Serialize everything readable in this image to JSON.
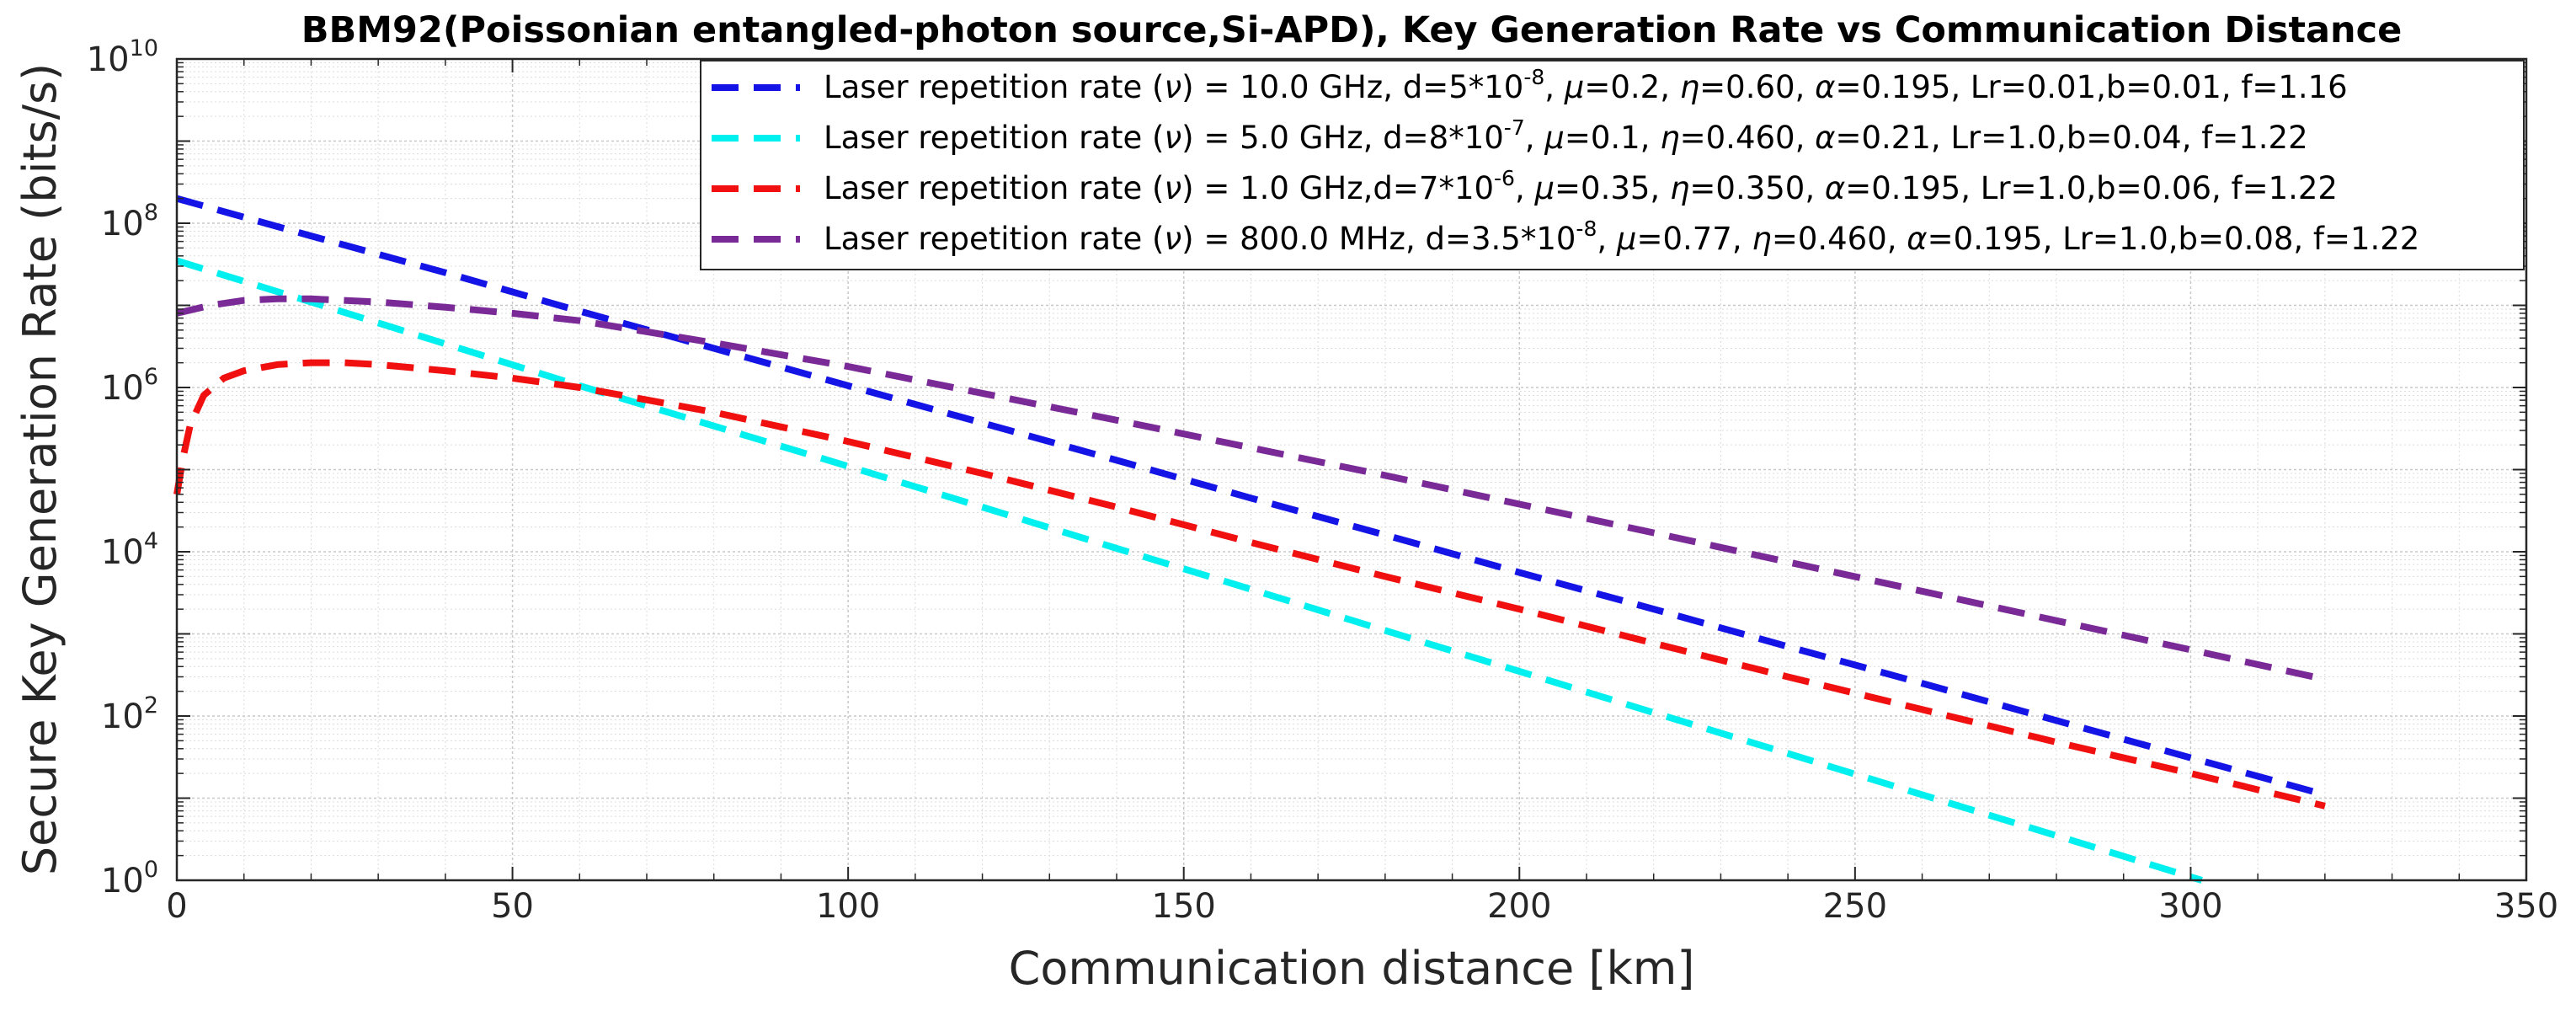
{
  "chart_data": {
    "type": "line",
    "title": "BBM92(Poissonian entangled-photon source,Si-APD), Key Generation Rate vs Communication Distance",
    "xlabel": "Communication distance [km]",
    "ylabel": "Secure Key Generation Rate (bits/s)",
    "xlim": [
      0,
      350
    ],
    "ylim": [
      1,
      10000000000
    ],
    "yscale": "log",
    "grid": true,
    "minor_grid": true,
    "legend_position": "top-right",
    "x_ticks": [
      "0",
      "50",
      "100",
      "150",
      "200",
      "250",
      "300",
      "350"
    ],
    "y_ticks": [
      {
        "base": "10",
        "exp": "0"
      },
      {
        "base": "10",
        "exp": "2"
      },
      {
        "base": "10",
        "exp": "4"
      },
      {
        "base": "10",
        "exp": "6"
      },
      {
        "base": "10",
        "exp": "8"
      },
      {
        "base": "10",
        "exp": "10"
      }
    ],
    "series": [
      {
        "name": "Laser repetition rate (ν) = 10.0 GHz, d=5*10-8, μ=0.2, η=0.60, α=0.195, Lr=0.01,b=0.01, f=1.16",
        "legend_parts": [
          {
            "t": "Laser repetition rate ("
          },
          {
            "t": "ν",
            "i": true
          },
          {
            "t": ") = 10.0 GHz, d=5*10"
          },
          {
            "t": "-8",
            "sup": true
          },
          {
            "t": ", "
          },
          {
            "t": "μ",
            "i": true
          },
          {
            "t": "=0.2, "
          },
          {
            "t": "η",
            "i": true
          },
          {
            "t": "=0.60, "
          },
          {
            "t": "α",
            "i": true
          },
          {
            "t": "=0.195, Lr=0.01,b=0.01, f=1.16"
          }
        ],
        "color": "#1414E6",
        "x": [
          0,
          20,
          40,
          60,
          80,
          100,
          120,
          140,
          160,
          180,
          200,
          220,
          240,
          260,
          280,
          300,
          320
        ],
        "y": [
          200000000,
          70000000,
          25000000,
          8500000,
          3000000,
          1050000,
          370000,
          130000,
          45000,
          16000,
          5600,
          2000,
          700,
          250,
          88,
          31,
          11
        ]
      },
      {
        "name": "Laser repetition rate (ν) = 5.0 GHz, d=8*10-7, μ=0.1, η=0.460, α=0.21, Lr=1.0,b=0.04, f=1.22",
        "legend_parts": [
          {
            "t": "Laser repetition rate ("
          },
          {
            "t": "ν",
            "i": true
          },
          {
            "t": ") = 5.0 GHz, d=8*10"
          },
          {
            "t": "-7",
            "sup": true
          },
          {
            "t": ", "
          },
          {
            "t": "μ",
            "i": true
          },
          {
            "t": "=0.1, "
          },
          {
            "t": "η",
            "i": true
          },
          {
            "t": "=0.460, "
          },
          {
            "t": "α",
            "i": true
          },
          {
            "t": "=0.21, Lr=1.0,b=0.04, f=1.22"
          }
        ],
        "color": "#00F0F0",
        "x": [
          0,
          20,
          40,
          60,
          80,
          100,
          120,
          140,
          160,
          180,
          200,
          220,
          240,
          260,
          280,
          300,
          320
        ],
        "y": [
          35000000,
          11000000,
          3400000,
          1050000,
          340000,
          110000,
          35000,
          11000,
          3500,
          1100,
          350,
          110,
          35,
          11,
          3.5,
          1.1,
          0.35
        ]
      },
      {
        "name": "Laser repetition rate (ν) = 1.0 GHz,d=7*10-6, μ=0.35, η=0.350, α=0.195, Lr=1.0,b=0.06, f=1.22",
        "legend_parts": [
          {
            "t": "Laser repetition rate ("
          },
          {
            "t": "ν",
            "i": true
          },
          {
            "t": ") = 1.0 GHz,d=7*10"
          },
          {
            "t": "-6",
            "sup": true
          },
          {
            "t": ", "
          },
          {
            "t": "μ",
            "i": true
          },
          {
            "t": "=0.35, "
          },
          {
            "t": "η",
            "i": true
          },
          {
            "t": "=0.350, "
          },
          {
            "t": "α",
            "i": true
          },
          {
            "t": "=0.195, Lr=1.0,b=0.06, f=1.22"
          }
        ],
        "color": "#F01010",
        "x": [
          0,
          1,
          2,
          4,
          7,
          10,
          15,
          20,
          25,
          30,
          40,
          50,
          60,
          80,
          100,
          120,
          140,
          160,
          180,
          200,
          220,
          240,
          260,
          280,
          300,
          320
        ],
        "y": [
          50000,
          150000,
          350000,
          800000,
          1300000,
          1600000,
          1900000,
          2000000,
          2000000,
          1900000,
          1600000,
          1300000,
          1000000,
          500000,
          220000,
          90000,
          35000,
          13000,
          5000,
          2000,
          770,
          300,
          120,
          48,
          20,
          8
        ]
      },
      {
        "name": "Laser repetition rate (ν) = 800.0 MHz, d=3.5*10-8, μ=0.77, η=0.460, α=0.195, Lr=1.0,b=0.08, f=1.22",
        "legend_parts": [
          {
            "t": "Laser repetition rate ("
          },
          {
            "t": "ν",
            "i": true
          },
          {
            "t": ") = 800.0 MHz, d=3.5*10"
          },
          {
            "t": "-8",
            "sup": true
          },
          {
            "t": ", "
          },
          {
            "t": "μ",
            "i": true
          },
          {
            "t": "=0.77, "
          },
          {
            "t": "η",
            "i": true
          },
          {
            "t": "=0.460, "
          },
          {
            "t": "α",
            "i": true
          },
          {
            "t": "=0.195, Lr=1.0,b=0.08, f=1.22"
          }
        ],
        "color": "#7A2A96",
        "x": [
          0,
          5,
          10,
          15,
          20,
          30,
          40,
          50,
          60,
          80,
          100,
          120,
          140,
          160,
          180,
          200,
          220,
          240,
          260,
          280,
          300,
          320
        ],
        "y": [
          8000000,
          10000000,
          11500000,
          12000000,
          12000000,
          11000000,
          9500000,
          8000000,
          6500000,
          3500000,
          1800000,
          850000,
          400000,
          185000,
          85000,
          38000,
          17000,
          7500,
          3300,
          1450,
          640,
          280
        ]
      }
    ]
  }
}
